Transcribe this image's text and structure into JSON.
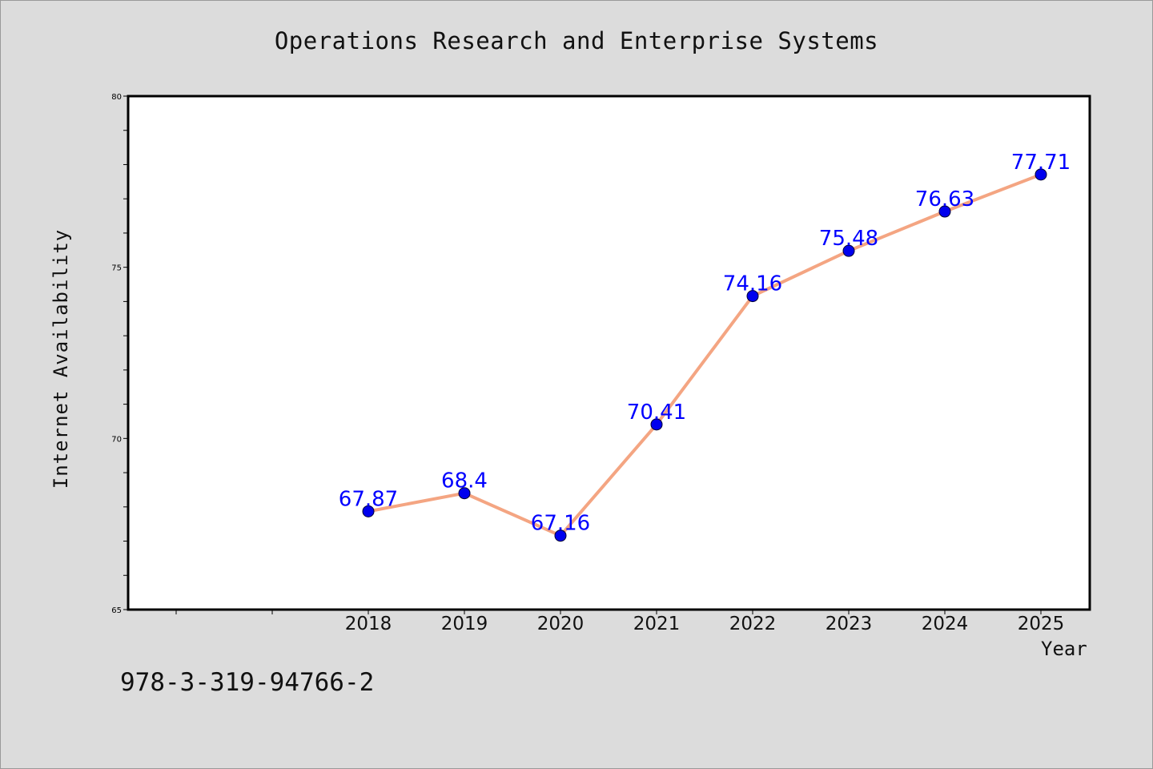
{
  "chart_data": {
    "type": "line",
    "title": "Operations Research and Enterprise Systems",
    "xlabel": "Year",
    "ylabel": "Internet Availability",
    "x": [
      "2018",
      "2019",
      "2020",
      "2021",
      "2022",
      "2023",
      "2024",
      "2025"
    ],
    "series": [
      {
        "values": [
          67.87,
          68.4,
          67.16,
          70.41,
          74.16,
          75.48,
          76.63,
          77.71
        ],
        "labels": [
          "67.87",
          "68.4",
          "67.16",
          "70.41",
          "74.16",
          "75.48",
          "76.63",
          "77.71"
        ],
        "line_color": "#f4a582",
        "marker_color": "#0000ee",
        "label_color": "#0000ff"
      }
    ],
    "ylim": [
      65,
      80
    ],
    "yticks": [
      "65",
      "70",
      "75",
      "80"
    ],
    "grid": false,
    "legend": "none"
  },
  "footer": {
    "code": "978-3-319-94766-2"
  },
  "colors": {
    "background": "#dcdcdc",
    "plot_background": "#ffffff",
    "axis": "#000000"
  }
}
